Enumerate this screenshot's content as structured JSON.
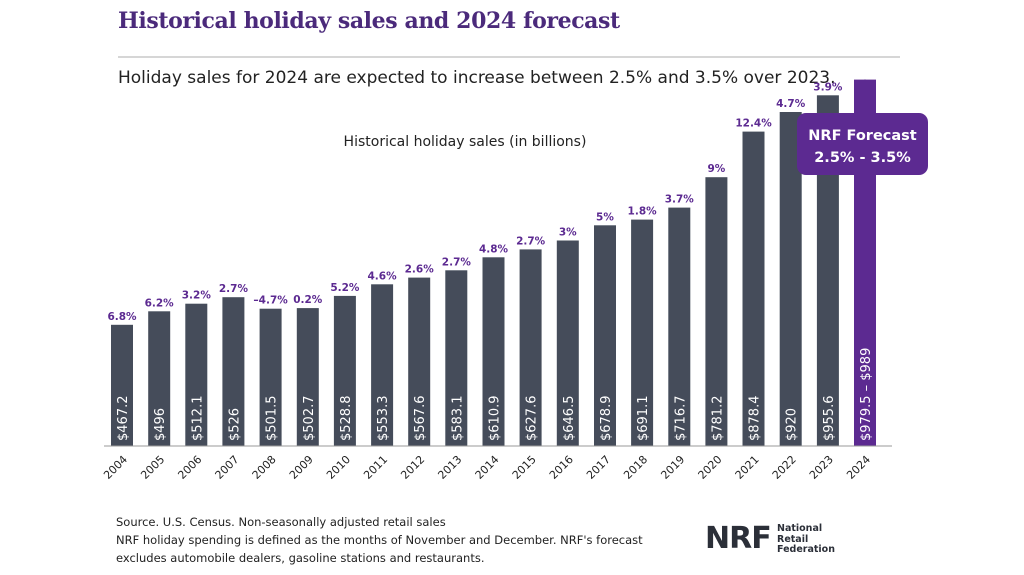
{
  "header": {
    "title": "Historical holiday sales and 2024 forecast",
    "subtitle": "Holiday sales for 2024 are expected to increase between 2.5% and 3.5% over 2023."
  },
  "colors": {
    "accent": "#5c2a91",
    "bar": "#454c5a",
    "title": "#4b2a7b"
  },
  "chart_data": {
    "type": "bar",
    "title": "Historical holiday sales (in billions)",
    "xlabel": "",
    "ylabel": "",
    "ylim": [
      0,
      1000
    ],
    "categories": [
      "2004",
      "2005",
      "2006",
      "2007",
      "2008",
      "2009",
      "2010",
      "2011",
      "2012",
      "2013",
      "2014",
      "2015",
      "2016",
      "2017",
      "2018",
      "2019",
      "2020",
      "2021",
      "2022",
      "2023",
      "2024"
    ],
    "values": [
      467.2,
      496,
      512.1,
      526,
      501.5,
      502.7,
      528.8,
      553.3,
      567.6,
      583.1,
      610.9,
      627.6,
      646.5,
      678.9,
      691.1,
      716.7,
      781.2,
      878.4,
      920,
      955.6,
      989
    ],
    "value_labels": [
      "$467.2",
      "$496",
      "$512.1",
      "$526",
      "$501.5",
      "$502.7",
      "$528.8",
      "$553.3",
      "$567.6",
      "$583.1",
      "$610.9",
      "$627.6",
      "$646.5",
      "$678.9",
      "$691.1",
      "$716.7",
      "$781.2",
      "$878.4",
      "$920",
      "$955.6",
      "$979.5 – $989"
    ],
    "growth_labels": [
      "6.8%",
      "6.2%",
      "3.2%",
      "2.7%",
      "–4.7%",
      "0.2%",
      "5.2%",
      "4.6%",
      "2.6%",
      "2.7%",
      "4.8%",
      "2.7%",
      "3%",
      "5%",
      "1.8%",
      "3.7%",
      "9%",
      "12.4%",
      "4.7%",
      "3.9%",
      ""
    ],
    "highlight_index": 20,
    "forecast_callout": {
      "line1": "NRF Forecast",
      "line2": "2.5% - 3.5%"
    }
  },
  "footer": {
    "source_line1": "Source. U.S. Census. Non-seasonally adjusted retail sales",
    "source_line2": "NRF holiday spending is defined as the months of November and December. NRF's forecast",
    "source_line3": "excludes automobile dealers, gasoline stations and restaurants.",
    "logo_mark": "NRF",
    "logo_line1": "National",
    "logo_line2": "Retail",
    "logo_line3": "Federation"
  }
}
